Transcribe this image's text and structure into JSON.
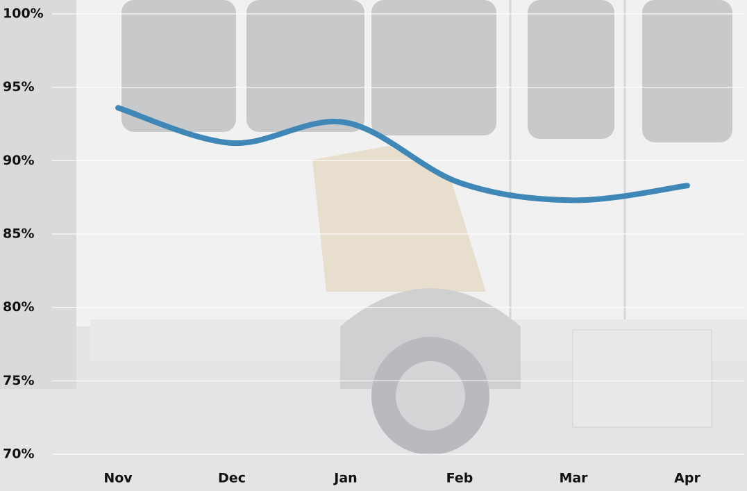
{
  "chart_data": {
    "type": "line",
    "categories": [
      "Nov",
      "Dec",
      "Jan",
      "Feb",
      "Mar",
      "Apr"
    ],
    "values": [
      93.6,
      91.2,
      92.6,
      88.5,
      87.3,
      88.3
    ],
    "color": "#3f87b7",
    "smooth": true,
    "ylim": [
      70,
      100
    ],
    "yticks": [
      {
        "value": 70,
        "label": "70%"
      },
      {
        "value": 75,
        "label": "75%"
      },
      {
        "value": 80,
        "label": "80%"
      },
      {
        "value": 85,
        "label": "85%"
      },
      {
        "value": 90,
        "label": "90%"
      },
      {
        "value": 95,
        "label": "95%"
      },
      {
        "value": 100,
        "label": "100%"
      }
    ],
    "grid": true
  }
}
